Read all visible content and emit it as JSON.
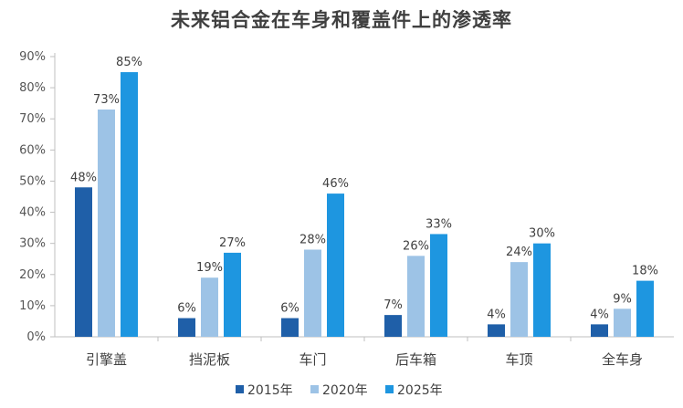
{
  "chart_data": {
    "type": "bar",
    "title": "未来铝合金在车身和覆盖件上的渗透率",
    "categories": [
      "引擎盖",
      "挡泥板",
      "车门",
      "后车箱",
      "车顶",
      "全车身"
    ],
    "series": [
      {
        "name": "2015年",
        "color": "#1f5fa8",
        "values": [
          48,
          6,
          6,
          7,
          4,
          4
        ]
      },
      {
        "name": "2020年",
        "color": "#9dc3e6",
        "values": [
          73,
          19,
          28,
          26,
          24,
          9
        ]
      },
      {
        "name": "2025年",
        "color": "#1e96e0",
        "values": [
          85,
          27,
          46,
          33,
          30,
          18
        ]
      }
    ],
    "ylim": [
      0,
      90
    ],
    "yticks": [
      0,
      10,
      20,
      30,
      40,
      50,
      60,
      70,
      80,
      90
    ],
    "ytick_labels": [
      "0%",
      "10%",
      "20%",
      "30%",
      "40%",
      "50%",
      "60%",
      "70%",
      "80%",
      "90%"
    ],
    "value_suffix": "%",
    "grid": false,
    "legend_position": "bottom"
  }
}
